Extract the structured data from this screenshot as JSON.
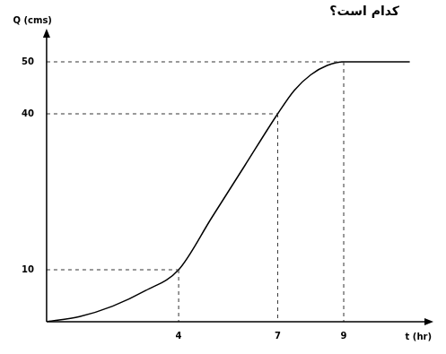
{
  "chart_data": {
    "type": "line",
    "x_label": "t (hr)",
    "y_label": "Q (cms)",
    "annotations": [
      "کدام است؟"
    ],
    "x": [
      0,
      1,
      2,
      3,
      4,
      5,
      6,
      7,
      7.5,
      8,
      8.5,
      9,
      10,
      11
    ],
    "values": [
      0,
      1,
      3,
      6,
      10,
      20,
      30,
      40,
      44.5,
      47.5,
      49.3,
      50,
      50,
      50
    ],
    "color": "#000000",
    "xlim": [
      0,
      11.5
    ],
    "xticks": [
      4,
      7,
      9
    ],
    "ylim": [
      0,
      55
    ],
    "yticks": [
      10,
      40,
      50
    ],
    "grid": false
  }
}
